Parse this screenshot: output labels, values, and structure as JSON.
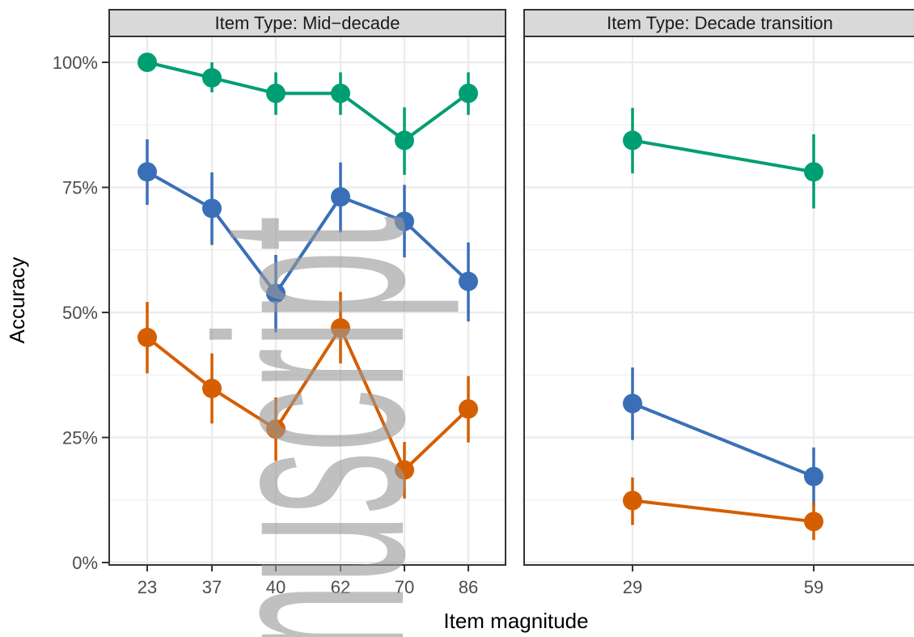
{
  "chart_data": {
    "type": "line",
    "xlabel": "Item magnitude",
    "ylabel": "Accuracy",
    "ylim": [
      0,
      1
    ],
    "yticks": [
      0,
      0.25,
      0.5,
      0.75,
      1.0
    ],
    "ytick_labels": [
      "0%",
      "25%",
      "50%",
      "75%",
      "100%"
    ],
    "grid": true,
    "legend": "none",
    "watermark": "nuscript",
    "panels": [
      {
        "strip": "Item Type: Mid−decade",
        "categories": [
          "23",
          "37",
          "40",
          "62",
          "70",
          "86"
        ],
        "series": [
          {
            "color": "#009E73",
            "values": [
              1.0,
              0.969,
              0.938,
              0.938,
              0.844,
              0.938
            ],
            "lower": [
              1.0,
              0.94,
              0.895,
              0.895,
              0.775,
              0.895
            ],
            "upper": [
              1.0,
              1.0,
              0.98,
              0.98,
              0.91,
              0.98
            ]
          },
          {
            "color": "#3A6FB8",
            "values": [
              0.781,
              0.708,
              0.538,
              0.731,
              0.682,
              0.562
            ],
            "lower": [
              0.715,
              0.635,
              0.46,
              0.66,
              0.61,
              0.482
            ],
            "upper": [
              0.846,
              0.78,
              0.615,
              0.8,
              0.755,
              0.64
            ]
          },
          {
            "color": "#D55E00",
            "values": [
              0.45,
              0.348,
              0.267,
              0.469,
              0.185,
              0.307
            ],
            "lower": [
              0.378,
              0.278,
              0.203,
              0.398,
              0.128,
              0.24
            ],
            "upper": [
              0.521,
              0.418,
              0.33,
              0.541,
              0.241,
              0.373
            ]
          }
        ]
      },
      {
        "strip": "Item Type: Decade transition",
        "categories": [
          "29",
          "59"
        ],
        "series": [
          {
            "color": "#009E73",
            "values": [
              0.844,
              0.781
            ],
            "lower": [
              0.778,
              0.708
            ],
            "upper": [
              0.909,
              0.856
            ]
          },
          {
            "color": "#3A6FB8",
            "values": [
              0.318,
              0.172
            ],
            "lower": [
              0.245,
              0.112
            ],
            "upper": [
              0.39,
              0.23
            ]
          },
          {
            "color": "#D55E00",
            "values": [
              0.124,
              0.082
            ],
            "lower": [
              0.075,
              0.045
            ],
            "upper": [
              0.17,
              0.12
            ]
          }
        ]
      }
    ]
  }
}
